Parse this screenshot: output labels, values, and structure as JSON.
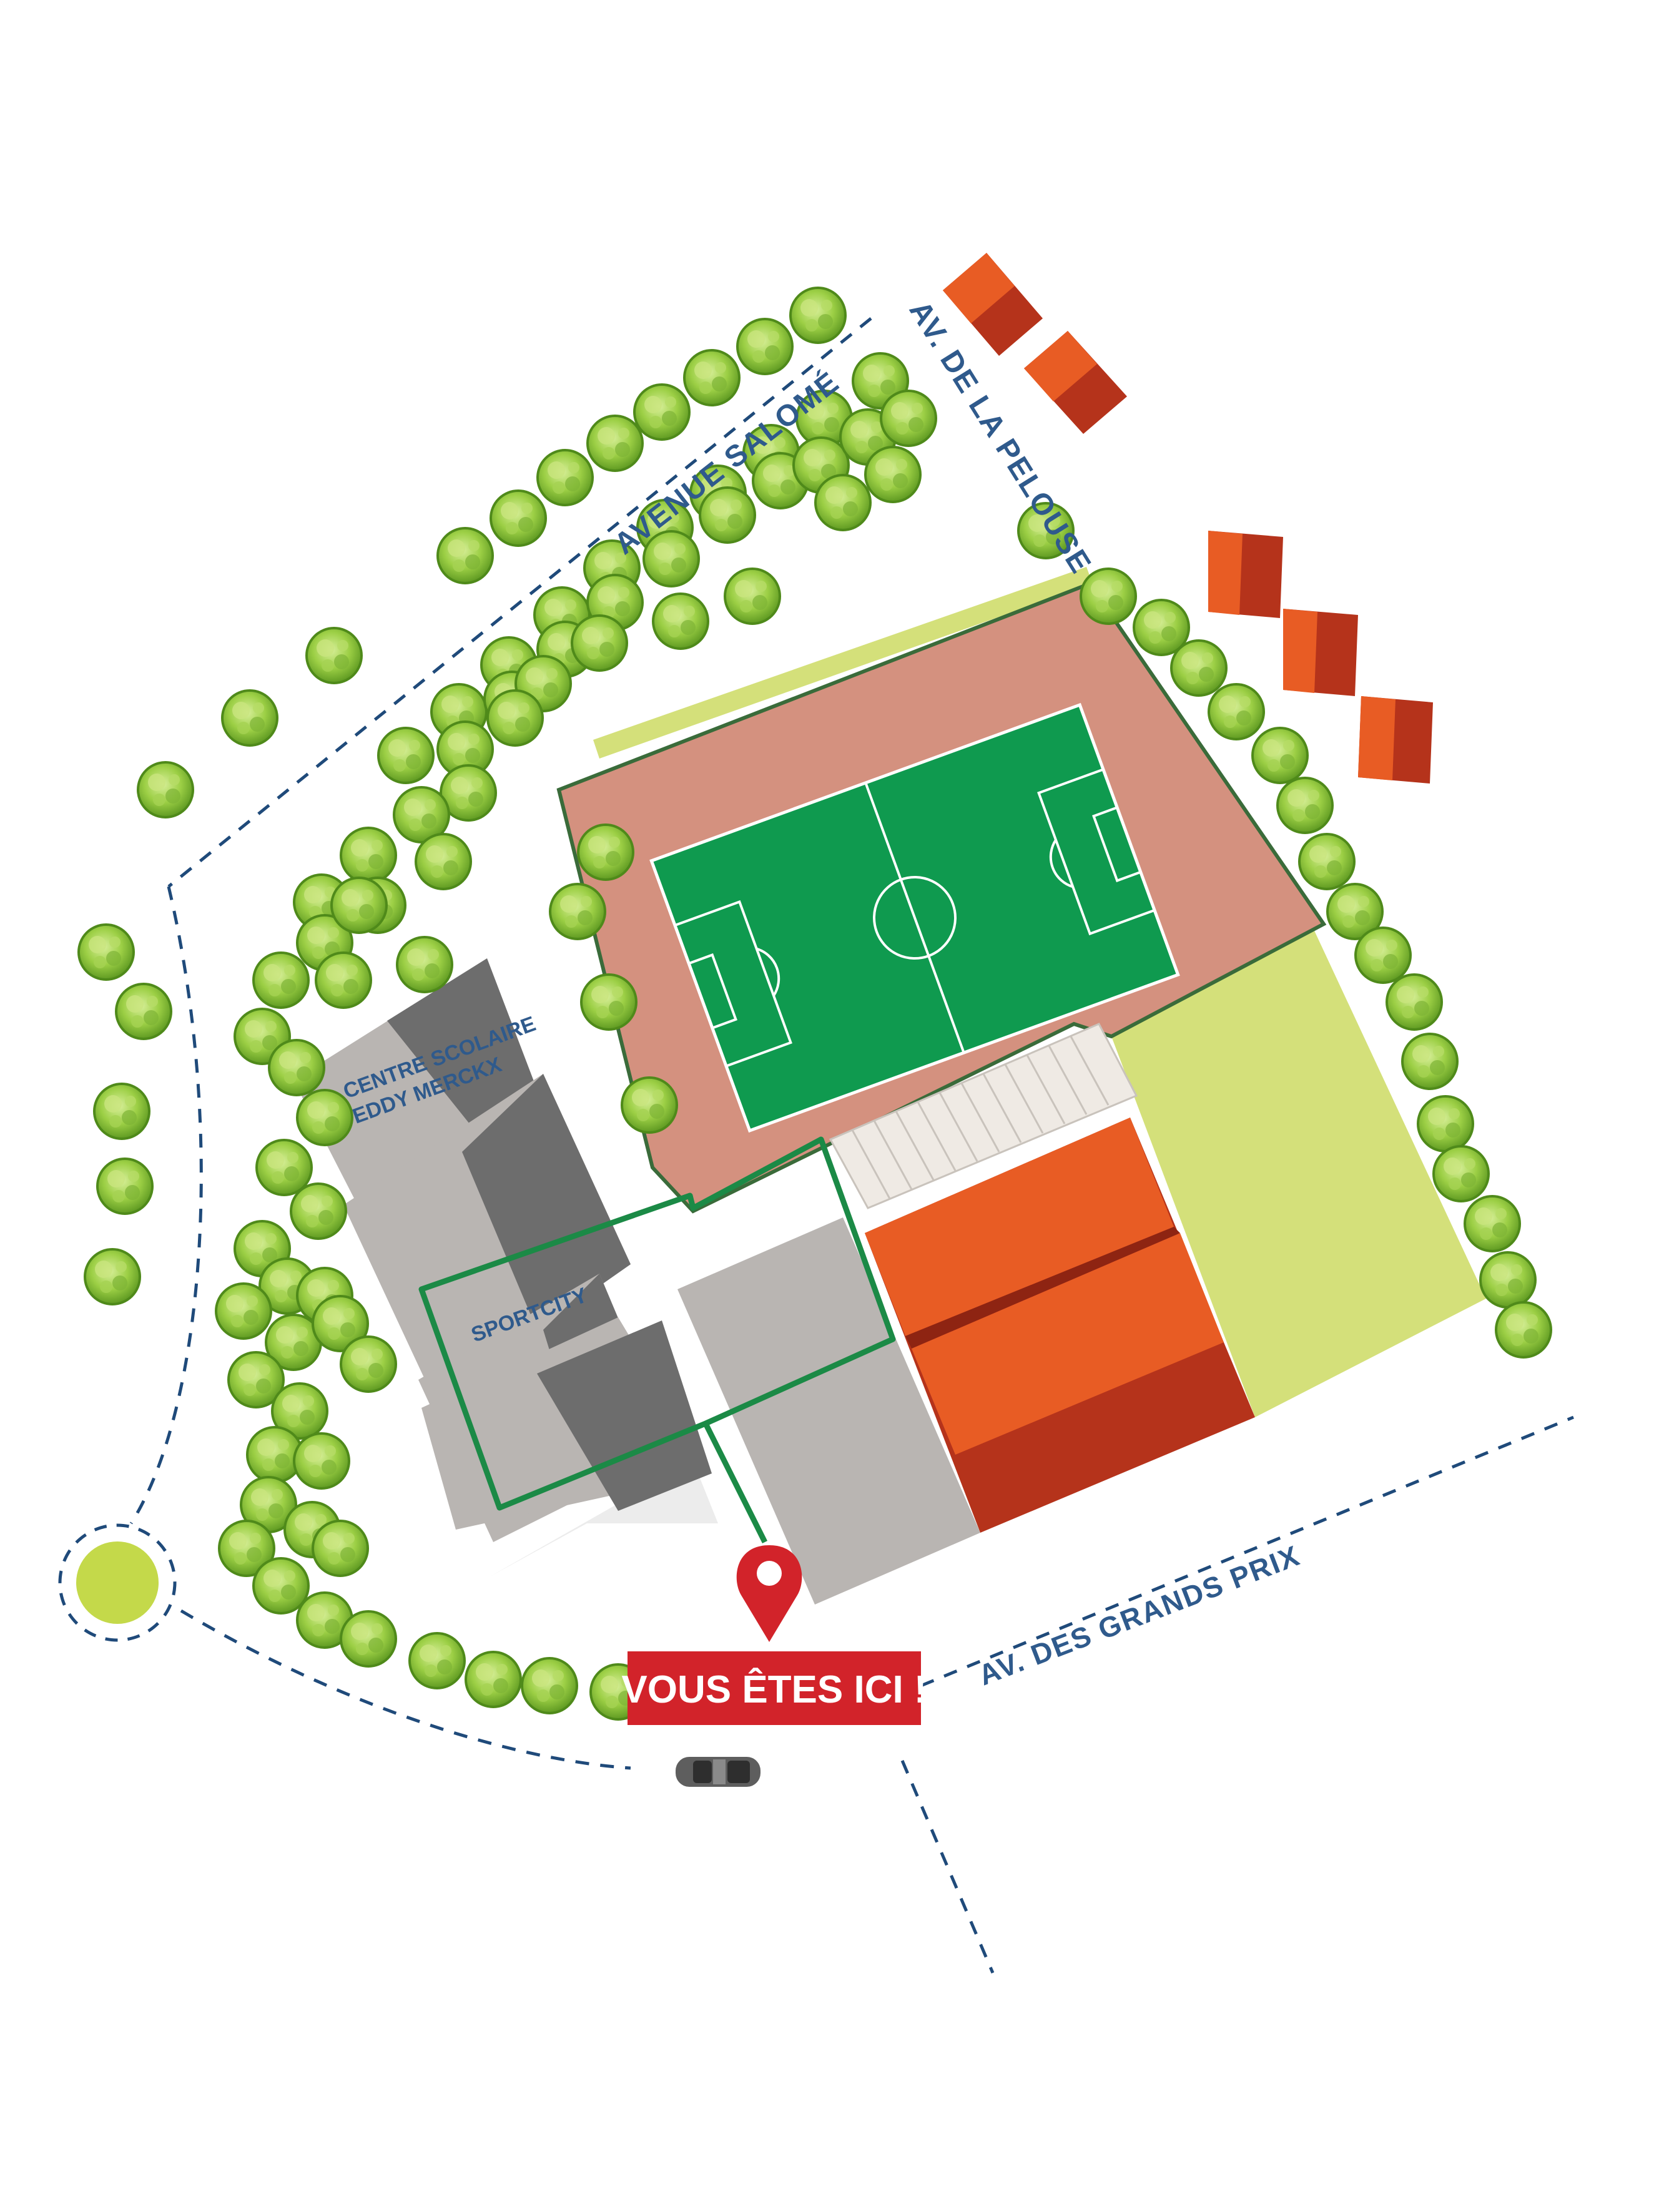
{
  "streets": {
    "avenue_salome": "AVENUE SALOMÉ",
    "av_pelouse": "AV. DE LA PELOUSE",
    "av_grands_prix": "AV. DES GRANDS PRIX"
  },
  "buildings": {
    "school_line1": "CENTRE SCOLAIRE",
    "school_line2": "EDDY MERCKX",
    "sportcity": "SPORTCITY"
  },
  "marker": {
    "label": "VOUS ÊTES ICI !"
  },
  "colors": {
    "track": "#d4917f",
    "pitch": "#0f9a4f",
    "lawn": "#d4e07a",
    "roof_light": "#e85c24",
    "roof_dark": "#b5331b",
    "building_light": "#b8b5b3",
    "building_dark": "#6d6d6d",
    "road_dash": "#1f4a7a",
    "marker_red": "#d2232a",
    "route_green": "#1b8a46",
    "tree_green": "#8cc43a",
    "roundabout": "#c4d94a",
    "street_text": "#2f5a8c"
  },
  "icons": {
    "marker": "map-pin-icon",
    "car": "car-icon",
    "tree": "tree-icon"
  }
}
